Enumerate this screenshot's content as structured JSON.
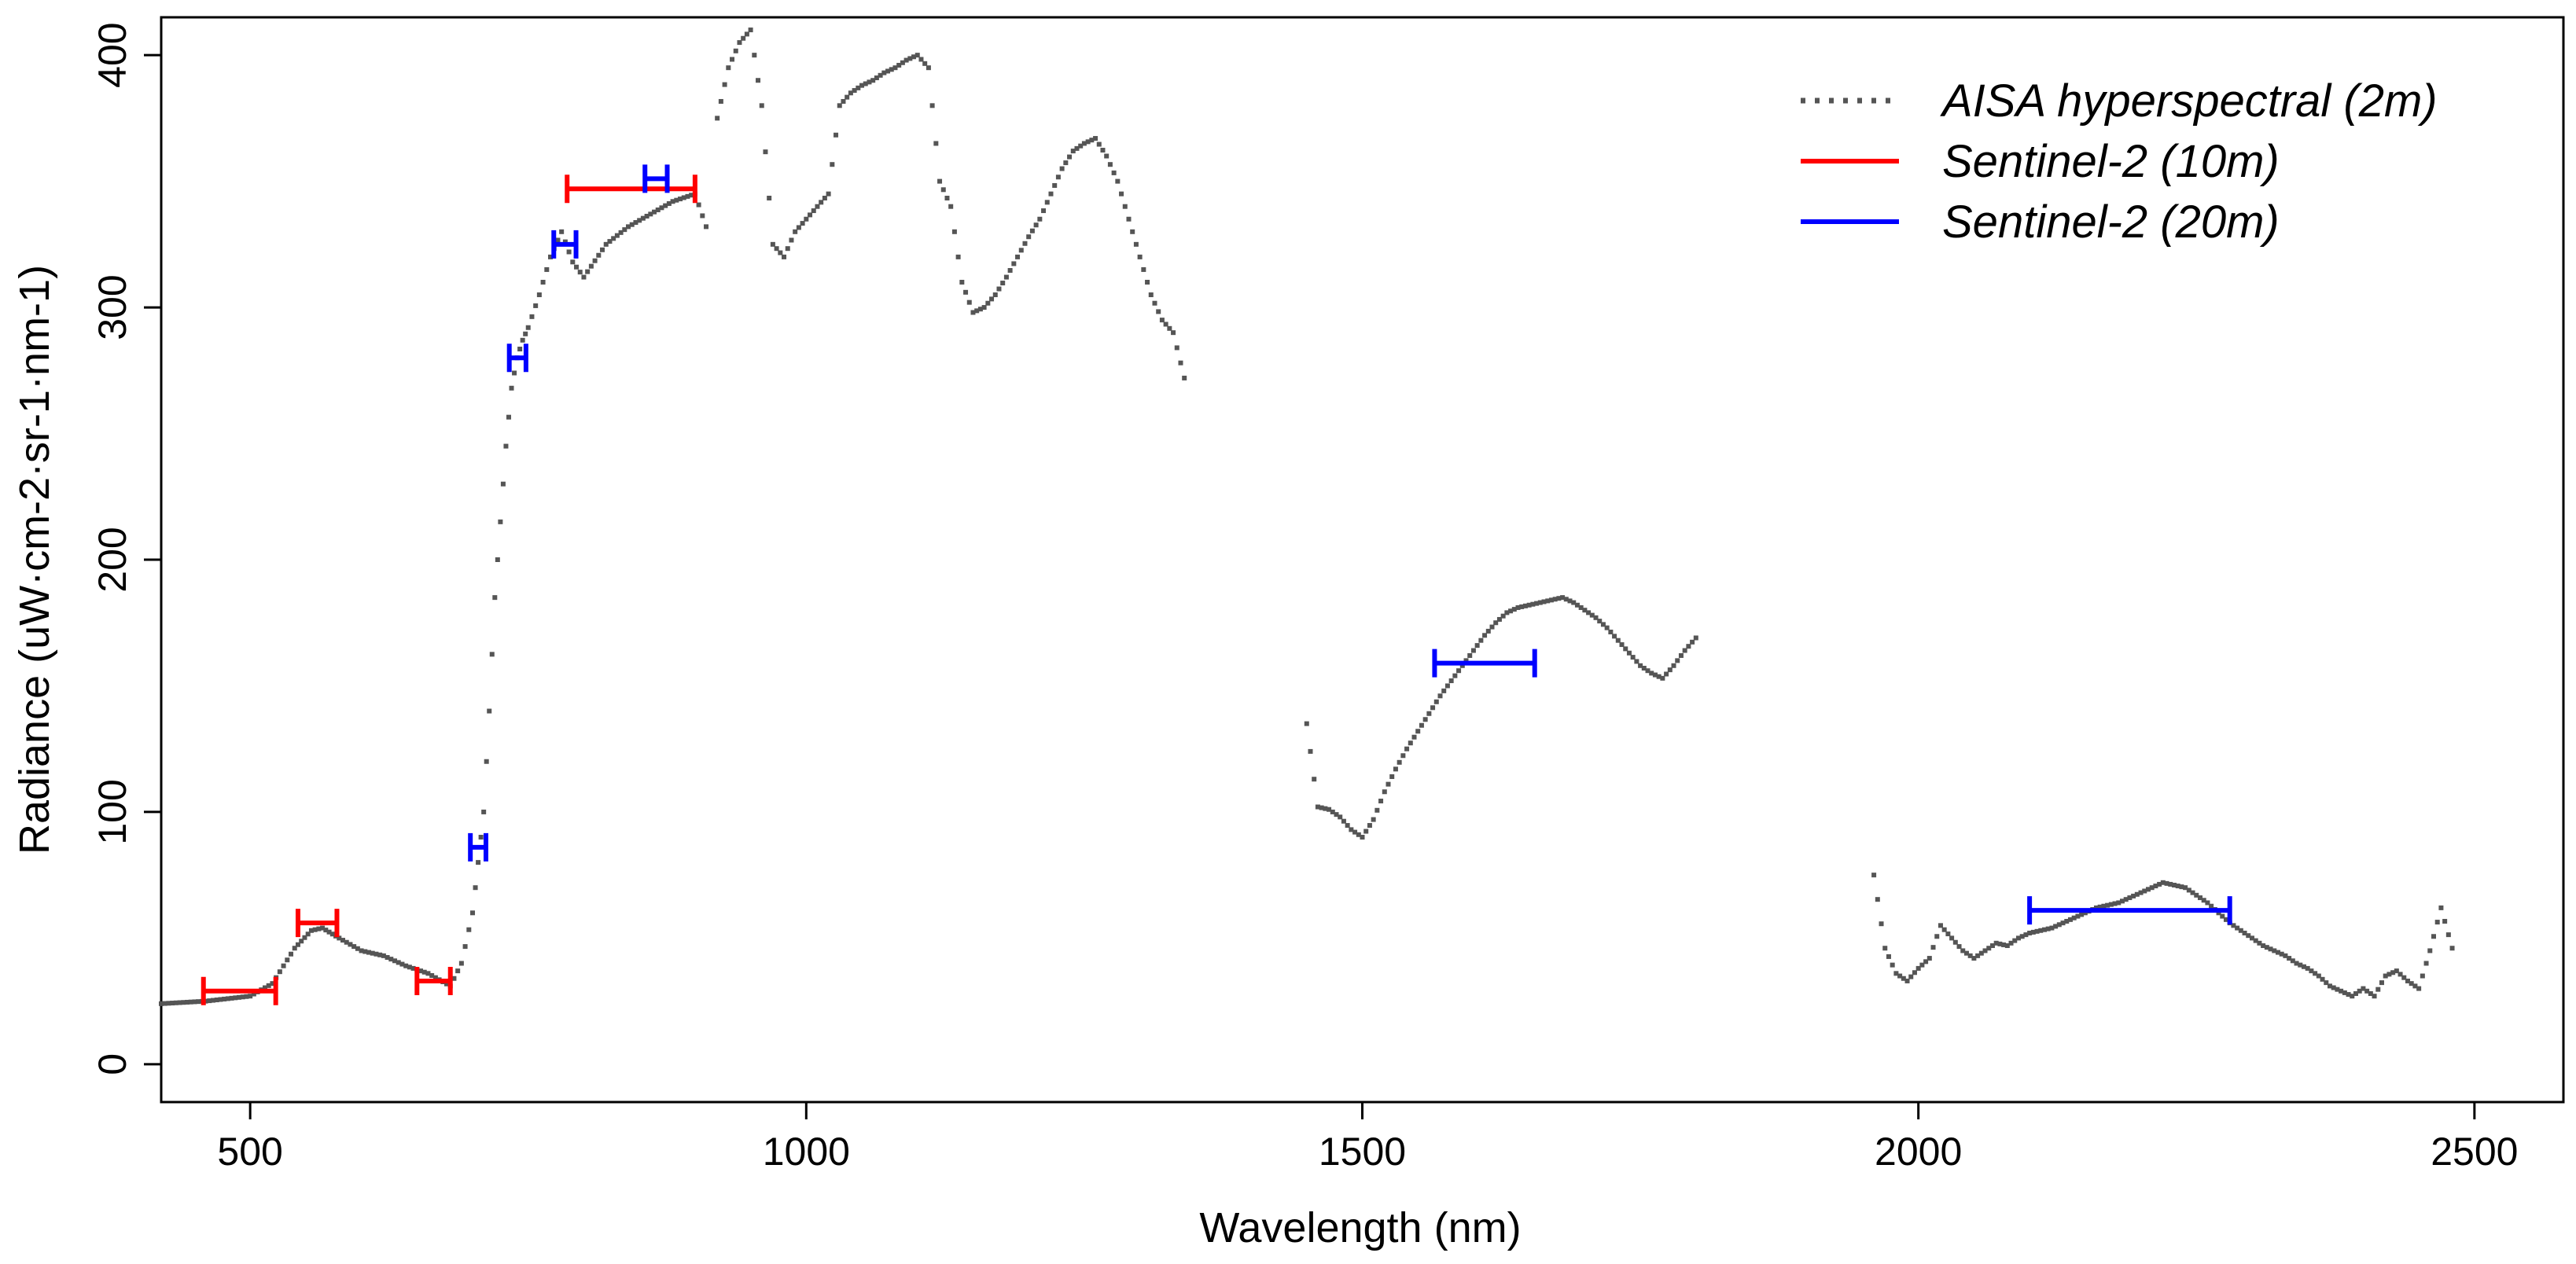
{
  "chart_data": {
    "type": "scatter",
    "title": "",
    "xlabel": "Wavelength (nm)",
    "ylabel": "Radiance (uW·cm-2·sr-1·nm-1)",
    "xlim": [
      420,
      2580
    ],
    "ylim": [
      -15,
      415
    ],
    "x_ticks": [
      500,
      1000,
      1500,
      2000,
      2500
    ],
    "y_ticks": [
      0,
      100,
      200,
      300,
      400
    ],
    "legend_position": "top-right",
    "grid": false,
    "series": [
      {
        "name": "AISA hyperspectral (2m)",
        "style": "dotted",
        "color": "#555555",
        "segments": [
          {
            "x": [
              420,
              460,
              500,
              520,
              540,
              555,
              565,
              580,
              600,
              620,
              640,
              660,
              680,
              690,
              700,
              705,
              710,
              715,
              720,
              725,
              730,
              735,
              740,
              745,
              750,
              760,
              770,
              780,
              790,
              800,
              820,
              840,
              860,
              880,
              900,
              910
            ],
            "y": [
              24,
              25,
              27,
              32,
              46,
              53,
              54,
              50,
              45,
              43,
              39,
              36,
              31,
              40,
              60,
              80,
              100,
              140,
              185,
              215,
              245,
              268,
              280,
              287,
              292,
              305,
              320,
              330,
              318,
              312,
              325,
              332,
              337,
              342,
              345,
              332
            ]
          },
          {
            "x": [
              920,
              930,
              940,
              950,
              960,
              970,
              980,
              990,
              1000,
              1010,
              1020,
              1030,
              1040,
              1050,
              1060,
              1070,
              1080,
              1090,
              1100,
              1110,
              1120,
              1130,
              1140,
              1150,
              1160,
              1170,
              1180,
              1190,
              1200,
              1210,
              1220,
              1230,
              1240,
              1250,
              1260,
              1270,
              1280,
              1290,
              1300,
              1310,
              1320,
              1330,
              1340
            ],
            "y": [
              375,
              395,
              405,
              410,
              380,
              325,
              320,
              330,
              335,
              340,
              345,
              380,
              385,
              388,
              390,
              393,
              395,
              398,
              400,
              395,
              350,
              340,
              310,
              298,
              300,
              305,
              312,
              320,
              328,
              335,
              345,
              355,
              362,
              365,
              367,
              360,
              350,
              335,
              320,
              305,
              295,
              290,
              272
            ]
          },
          {
            "x": [
              1450,
              1460,
              1470,
              1480,
              1490,
              1500,
              1510,
              1520,
              1530,
              1540,
              1550,
              1560,
              1570,
              1580,
              1590,
              1600,
              1610,
              1620,
              1630,
              1640,
              1650,
              1660,
              1670,
              1680,
              1690,
              1700,
              1710,
              1720,
              1730,
              1740,
              1750,
              1760,
              1770,
              1780,
              1790,
              1800
            ],
            "y": [
              135,
              102,
              101,
              98,
              93,
              90,
              97,
              108,
              117,
              125,
              132,
              139,
              146,
              152,
              158,
              164,
              170,
              175,
              179,
              181,
              182,
              183,
              184,
              185,
              183,
              180,
              177,
              173,
              168,
              163,
              158,
              155,
              153,
              158,
              164,
              169
            ]
          },
          {
            "x": [
              1960,
              1970,
              1980,
              1990,
              2000,
              2010,
              2020,
              2030,
              2040,
              2050,
              2060,
              2070,
              2080,
              2090,
              2100,
              2110,
              2120,
              2130,
              2140,
              2150,
              2160,
              2170,
              2180,
              2190,
              2200,
              2210,
              2220,
              2230,
              2240,
              2250,
              2260,
              2270,
              2280,
              2290,
              2300,
              2310,
              2320,
              2330,
              2340,
              2350,
              2360,
              2370,
              2380,
              2390,
              2400,
              2410,
              2420,
              2430,
              2440,
              2450,
              2460,
              2470,
              2480
            ],
            "y": [
              75,
              46,
              36,
              33,
              38,
              42,
              55,
              50,
              45,
              42,
              45,
              48,
              47,
              50,
              52,
              53,
              54,
              56,
              58,
              60,
              62,
              63,
              64,
              66,
              68,
              70,
              72,
              71,
              70,
              67,
              64,
              60,
              56,
              53,
              50,
              47,
              45,
              43,
              40,
              38,
              35,
              31,
              29,
              27,
              30,
              27,
              35,
              37,
              33,
              30,
              45,
              62,
              46
            ]
          }
        ]
      },
      {
        "name": "Sentinel-2 (10m)",
        "color": "#ff0000",
        "bands": [
          {
            "x0": 458,
            "x1": 523,
            "y": 29
          },
          {
            "x0": 543,
            "x1": 578,
            "y": 56
          },
          {
            "x0": 650,
            "x1": 680,
            "y": 33
          },
          {
            "x0": 785,
            "x1": 900,
            "y": 347
          }
        ]
      },
      {
        "name": "Sentinel-2 (20m)",
        "color": "#0000ff",
        "bands": [
          {
            "x0": 698,
            "x1": 712,
            "y": 86
          },
          {
            "x0": 733,
            "x1": 748,
            "y": 280
          },
          {
            "x0": 773,
            "x1": 793,
            "y": 325
          },
          {
            "x0": 855,
            "x1": 875,
            "y": 351
          },
          {
            "x0": 1565,
            "x1": 1655,
            "y": 159
          },
          {
            "x0": 2100,
            "x1": 2280,
            "y": 61
          }
        ]
      }
    ]
  }
}
